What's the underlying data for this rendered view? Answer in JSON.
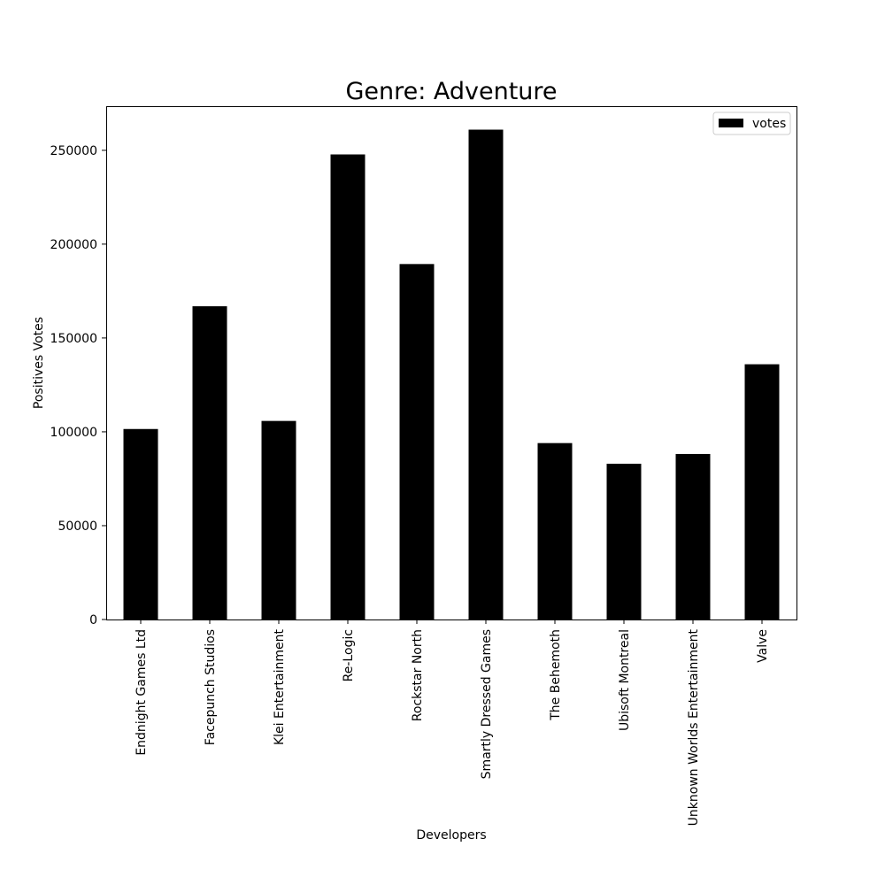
{
  "chart_data": {
    "type": "bar",
    "title": "Genre: Adventure",
    "xlabel": "Developers",
    "ylabel": "Positives Votes",
    "categories": [
      "Endnight Games Ltd",
      "Facepunch Studios",
      "Klei Entertainment",
      "Re-Logic",
      "Rockstar North",
      "Smartly Dressed Games",
      "The Behemoth",
      "Ubisoft Montreal",
      "Unknown Worlds Entertainment",
      "Valve"
    ],
    "series": [
      {
        "name": "votes",
        "color": "#000000",
        "values": [
          101500,
          166900,
          105800,
          247800,
          189400,
          261000,
          94000,
          83000,
          88200,
          136000
        ]
      }
    ],
    "ylim": [
      0,
      273500
    ],
    "yticks": [
      0,
      50000,
      100000,
      150000,
      200000,
      250000
    ],
    "ytick_labels": [
      "0",
      "50000",
      "100000",
      "150000",
      "200000",
      "250000"
    ],
    "grid": false,
    "legend": "top-right"
  }
}
